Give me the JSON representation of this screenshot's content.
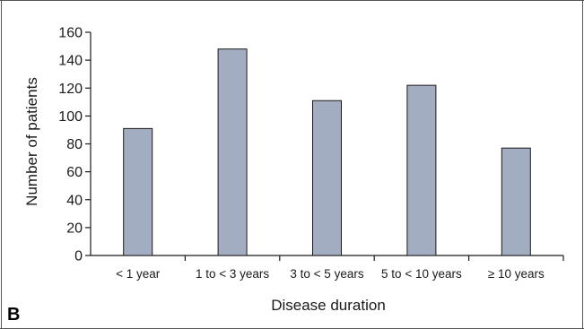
{
  "panel_label": "B",
  "colors": {
    "bar_fill": "#a2adc1",
    "bar_stroke": "#1a1a1a",
    "axis": "#1a1a1a",
    "frame": "#555555"
  },
  "chart_data": {
    "type": "bar",
    "categories": [
      "< 1 year",
      "1 to < 3 years",
      "3 to < 5 years",
      "5 to < 10 years",
      "≥ 10 years"
    ],
    "values": [
      91,
      148,
      111,
      122,
      77
    ],
    "xlabel": "Disease duration",
    "ylabel": "Number of patients",
    "ylim": [
      0,
      160
    ],
    "yticks": [
      0,
      20,
      40,
      60,
      80,
      100,
      120,
      140,
      160
    ],
    "grid": false,
    "legend": "none"
  }
}
